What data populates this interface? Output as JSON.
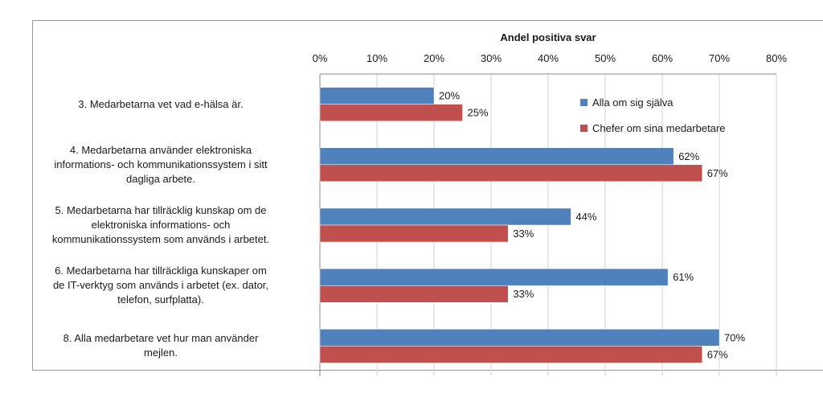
{
  "chart_data": {
    "type": "bar",
    "orientation": "horizontal",
    "title": "Andel positiva svar",
    "categories": [
      "3. Medarbetarna vet vad e-hälsa är.",
      "4. Medarbetarna använder elektroniska informations- och kommunikationssystem i sitt dagliga arbete.",
      "5. Medarbetarna har tillräcklig kunskap om de elektroniska informations- och kommunikationssystem som används i arbetet.",
      "6. Medarbetarna har tillräckliga kunskaper om de IT-verktyg som används i arbetet (ex. dator, telefon, surfplatta).",
      "8. Alla medarbetare vet hur man använder mejlen."
    ],
    "category_lines": [
      [
        "3. Medarbetarna vet vad e-hälsa är."
      ],
      [
        "4. Medarbetarna använder elektroniska",
        "informations- och kommunikationssystem i sitt",
        "dagliga arbete."
      ],
      [
        "5. Medarbetarna har tillräcklig kunskap om de",
        "elektroniska informations- och",
        "kommunikationssystem som används i arbetet."
      ],
      [
        "6. Medarbetarna har tillräckliga kunskaper om",
        "de IT-verktyg som används i arbetet (ex. dator,",
        "telefon, surfplatta)."
      ],
      [
        "8. Alla medarbetare vet hur man använder",
        "mejlen."
      ]
    ],
    "series": [
      {
        "name": "Alla om sig själva",
        "color": "#4f81bd",
        "values": [
          20,
          62,
          44,
          61,
          70
        ],
        "labels": [
          "20%",
          "62%",
          "44%",
          "61%",
          "70%"
        ]
      },
      {
        "name": "Chefer om sina medarbetare",
        "color": "#c0504d",
        "values": [
          25,
          67,
          33,
          33,
          67
        ],
        "labels": [
          "25%",
          "67%",
          "33%",
          "33%",
          "67%"
        ]
      }
    ],
    "xlim": [
      0,
      80
    ],
    "x_ticks": [
      "0%",
      "10%",
      "20%",
      "30%",
      "40%",
      "50%",
      "60%",
      "70%",
      "80%"
    ],
    "grid": true,
    "legend_position": "top-right"
  }
}
